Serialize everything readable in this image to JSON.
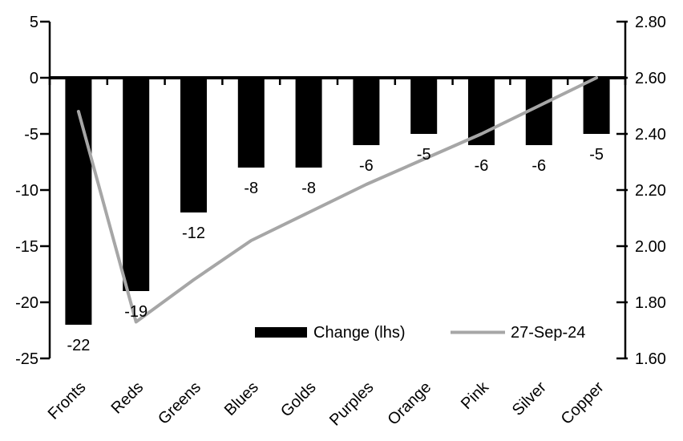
{
  "chart_data": {
    "type": "bar",
    "subtype": "combo-bar-line-dual-axis",
    "categories": [
      "Fronts",
      "Reds",
      "Greens",
      "Blues",
      "Golds",
      "Purples",
      "Orange",
      "Pink",
      "Silver",
      "Copper"
    ],
    "series": [
      {
        "name": "Change (lhs)",
        "type": "bar",
        "axis": "left",
        "color": "#000000",
        "values": [
          -22,
          -19,
          -12,
          -8,
          -8,
          -6,
          -5,
          -6,
          -6,
          -5
        ],
        "data_labels": [
          "-22",
          "-19",
          "-12",
          "-8",
          "-8",
          "-6",
          "-5",
          "-6",
          "-6",
          "-5"
        ]
      },
      {
        "name": "27-Sep-24",
        "type": "line",
        "axis": "right",
        "color": "#a6a6a6",
        "values": [
          2.48,
          1.73,
          1.88,
          2.02,
          2.12,
          2.22,
          2.31,
          2.4,
          2.5,
          2.6
        ]
      }
    ],
    "left_axis": {
      "min": -25,
      "max": 5,
      "ticks": [
        5,
        0,
        -5,
        -10,
        -15,
        -20,
        -25
      ],
      "tick_labels": [
        "5",
        "0",
        "-5",
        "-10",
        "-15",
        "-20",
        "-25"
      ]
    },
    "right_axis": {
      "min": 1.6,
      "max": 2.8,
      "ticks": [
        2.8,
        2.6,
        2.4,
        2.2,
        2.0,
        1.8,
        1.6
      ],
      "tick_labels": [
        "2.80",
        "2.60",
        "2.40",
        "2.20",
        "2.00",
        "1.80",
        "1.60"
      ]
    },
    "legend": {
      "position": "bottom-inside",
      "items": [
        {
          "label": "Change (lhs)",
          "swatch": "bar",
          "color": "#000000"
        },
        {
          "label": "27-Sep-24",
          "swatch": "line",
          "color": "#a6a6a6"
        }
      ]
    },
    "grid": false,
    "background": "#ffffff",
    "axis_color": "#000000"
  }
}
